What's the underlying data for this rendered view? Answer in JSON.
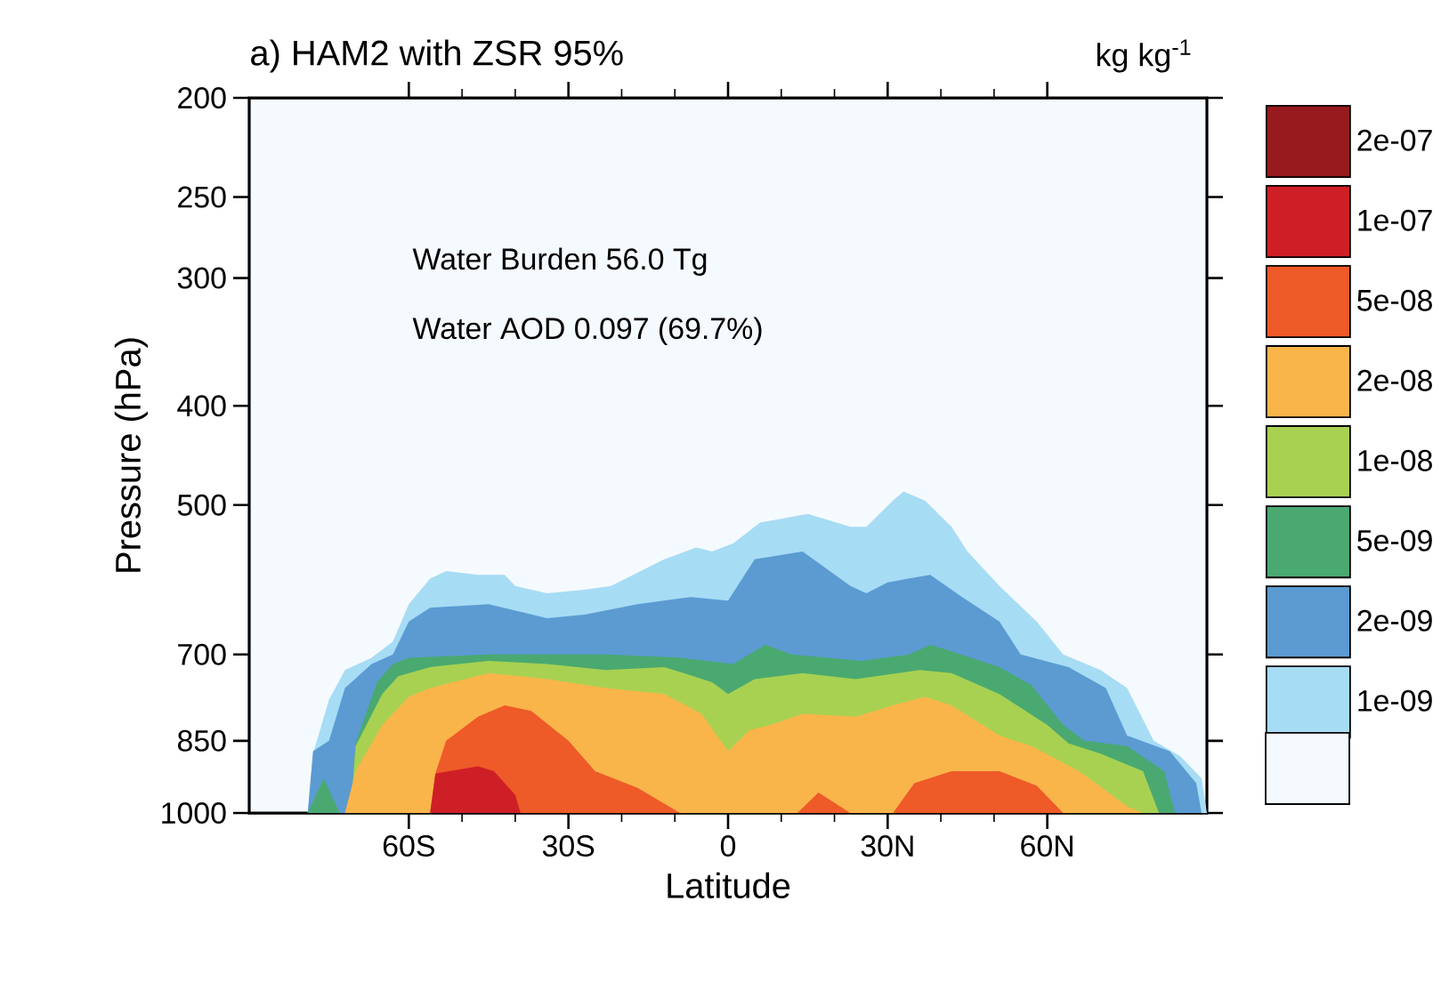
{
  "chart_data": {
    "type": "area",
    "title": "a) HAM2 with ZSR 95%",
    "clabel": "kg kg$^{-1}$",
    "xlabel": "Latitude",
    "ylabel": "Pressure (hPa)",
    "xlim": [
      -90,
      90
    ],
    "xticks": [
      {
        "value": -60,
        "label": "60S"
      },
      {
        "value": -30,
        "label": "30S"
      },
      {
        "value": 0,
        "label": "0"
      },
      {
        "value": 30,
        "label": "30N"
      },
      {
        "value": 60,
        "label": "60N"
      }
    ],
    "ylim": [
      1000,
      200
    ],
    "yticks": [
      200,
      250,
      300,
      400,
      500,
      700,
      850,
      1000
    ],
    "log": "y",
    "legend": "right",
    "annotations": [
      "Water Burden   56.0 Tg",
      "Water AOD      0.097 (69.7%)"
    ],
    "series": [
      {
        "name": "1e-09",
        "color": "#a7dcf5",
        "x": [
          -79,
          -78,
          -75,
          -72,
          -67,
          -63,
          -60,
          -56,
          -53,
          -47,
          -42,
          -40,
          -34,
          -27,
          -22,
          -12,
          -6,
          -3,
          1,
          6,
          15,
          23,
          26,
          31,
          33,
          37,
          42,
          45,
          51,
          58,
          63,
          70,
          75,
          80,
          85,
          89,
          90
        ],
        "values": [
          1000,
          875,
          775,
          725,
          705,
          680,
          625,
          590,
          580,
          585,
          585,
          600,
          610,
          605,
          600,
          565,
          550,
          555,
          545,
          520,
          510,
          525,
          525,
          495,
          485,
          495,
          525,
          555,
          600,
          650,
          700,
          725,
          755,
          850,
          880,
          925,
          1000
        ]
      },
      {
        "name": "2e-09",
        "color": "#5b9bd2",
        "x": [
          -79,
          -78,
          -75,
          -72,
          -67,
          -63,
          -60,
          -56,
          -45,
          -34,
          -27,
          -17,
          -7,
          0,
          5,
          14,
          23,
          26,
          30,
          38,
          44,
          51,
          55,
          64,
          71,
          75,
          83,
          88,
          89
        ],
        "values": [
          1000,
          870,
          850,
          755,
          715,
          700,
          650,
          630,
          625,
          645,
          640,
          625,
          615,
          620,
          565,
          555,
          600,
          610,
          595,
          585,
          615,
          650,
          700,
          720,
          755,
          840,
          870,
          935,
          1000
        ]
      },
      {
        "name": "5e-09",
        "color": "#4aa970",
        "x": [
          -79,
          -76,
          -73,
          -71,
          -70,
          -66,
          -63,
          -60,
          -45,
          -23,
          -9,
          1,
          4,
          7,
          12,
          25,
          34,
          38,
          42,
          51,
          57,
          63,
          67,
          75,
          82,
          84
        ],
        "values": [
          1000,
          925,
          1000,
          1000,
          855,
          745,
          715,
          705,
          700,
          700,
          705,
          715,
          700,
          685,
          700,
          710,
          700,
          685,
          695,
          720,
          750,
          820,
          850,
          860,
          910,
          1000
        ]
      },
      {
        "name": "1e-08",
        "color": "#a8d152",
        "x": [
          -71,
          -70,
          -65,
          -62,
          -56,
          -45,
          -34,
          -23,
          -12,
          -3,
          0,
          5,
          14,
          24,
          36,
          42,
          51,
          60,
          64,
          70,
          78,
          81
        ],
        "values": [
          1000,
          860,
          765,
          735,
          720,
          710,
          715,
          725,
          720,
          745,
          765,
          740,
          730,
          740,
          725,
          730,
          765,
          820,
          855,
          875,
          910,
          1000
        ]
      },
      {
        "name": "2e-08",
        "color": "#fab54a",
        "x": [
          -72,
          -70,
          -65,
          -60,
          -56,
          -45,
          -34,
          -23,
          -12,
          -5,
          0,
          4,
          8,
          14,
          24,
          31,
          37,
          42,
          51,
          57,
          66,
          75,
          78
        ],
        "values": [
          1000,
          910,
          820,
          770,
          755,
          730,
          740,
          755,
          765,
          800,
          870,
          830,
          820,
          800,
          805,
          785,
          770,
          785,
          840,
          860,
          910,
          985,
          1000
        ]
      },
      {
        "name": "5e-08",
        "color": "#ee5a28",
        "x": [
          -56,
          -55,
          -53,
          -47,
          -42,
          -37,
          -30,
          -25,
          -17,
          -9,
          13,
          17,
          23,
          31,
          35,
          42,
          51,
          58,
          63
        ],
        "values": [
          1000,
          915,
          850,
          805,
          785,
          795,
          850,
          910,
          945,
          1000,
          1000,
          955,
          1000,
          1000,
          935,
          910,
          910,
          940,
          1000
        ]
      },
      {
        "name": "1e-07",
        "color": "#ce1f26",
        "x": [
          -56,
          -55,
          -47,
          -44,
          -40,
          -39
        ],
        "values": [
          1000,
          915,
          900,
          910,
          960,
          1000
        ]
      },
      {
        "name": "2e-07",
        "color": "#961a1e"
      }
    ]
  }
}
